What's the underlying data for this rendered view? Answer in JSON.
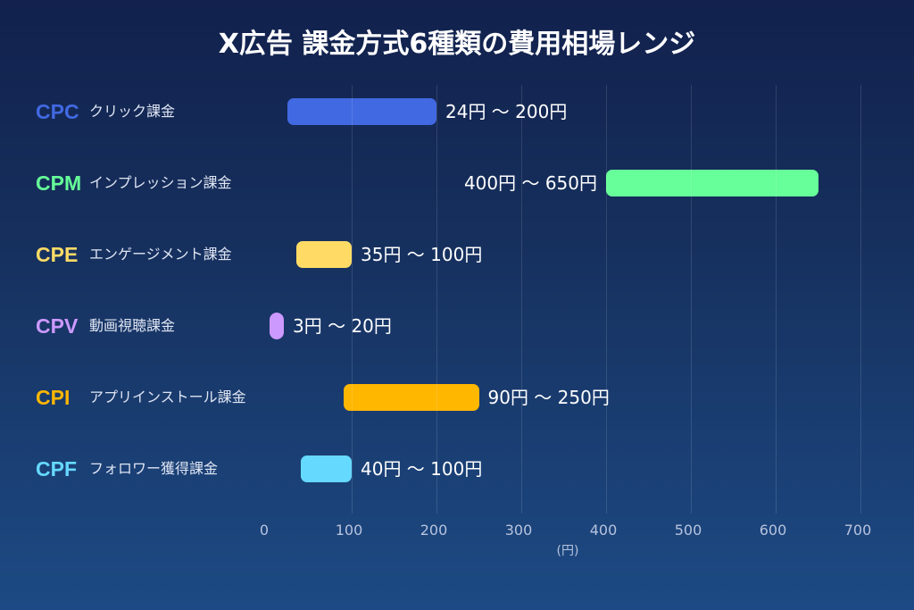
{
  "title": "X広告 課金方式6種類の費用相場レンジ",
  "axis": {
    "ticks": [
      "0",
      "100",
      "200",
      "300",
      "400",
      "500",
      "600",
      "700"
    ],
    "unit": "(円)"
  },
  "rows": [
    {
      "code": "CPC",
      "name": "クリック課金",
      "label": "24円 〜 200円",
      "color": "#4169e1"
    },
    {
      "code": "CPM",
      "name": "インプレッション課金",
      "label": "400円 〜 650円",
      "color": "#66ff99"
    },
    {
      "code": "CPE",
      "name": "エンゲージメント課金",
      "label": "35円 〜 100円",
      "color": "#ffdb66"
    },
    {
      "code": "CPV",
      "name": "動画視聴課金",
      "label": "3円 〜 20円",
      "color": "#cc99ff"
    },
    {
      "code": "CPI",
      "name": "アプリインストール課金",
      "label": "90円 〜 250円",
      "color": "#ffb700"
    },
    {
      "code": "CPF",
      "name": "フォロワー獲得課金",
      "label": "40円 〜 100円",
      "color": "#66d9ff"
    }
  ],
  "chart_data": {
    "type": "bar",
    "orientation": "horizontal-range",
    "title": "X広告 課金方式6種類の費用相場レンジ",
    "xlabel": "(円)",
    "ylabel": "",
    "xlim": [
      0,
      700
    ],
    "x_ticks": [
      0,
      100,
      200,
      300,
      400,
      500,
      600,
      700
    ],
    "grid": true,
    "categories": [
      "CPC クリック課金",
      "CPM インプレッション課金",
      "CPE エンゲージメント課金",
      "CPV 動画視聴課金",
      "CPI アプリインストール課金",
      "CPF フォロワー獲得課金"
    ],
    "series": [
      {
        "name": "min",
        "values": [
          24,
          400,
          35,
          3,
          90,
          40
        ]
      },
      {
        "name": "max",
        "values": [
          200,
          650,
          100,
          20,
          250,
          100
        ]
      }
    ],
    "data_labels": [
      "24円 〜 200円",
      "400円 〜 650円",
      "35円 〜 100円",
      "3円 〜 20円",
      "90円 〜 250円",
      "40円 〜 100円"
    ],
    "colors": [
      "#4169e1",
      "#66ff99",
      "#ffdb66",
      "#cc99ff",
      "#ffb700",
      "#66d9ff"
    ]
  }
}
